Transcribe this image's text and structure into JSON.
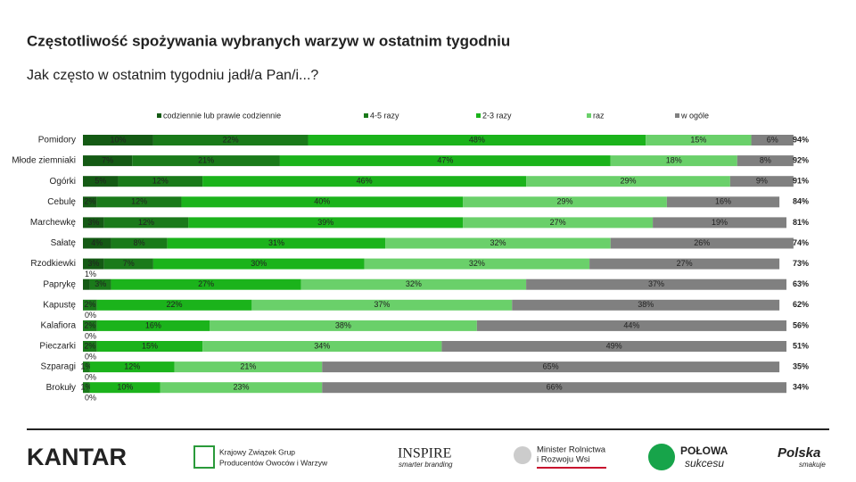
{
  "chart_data": {
    "type": "stacked-bar-horizontal",
    "title": "Częstotliwość spożywania wybranych warzyw w ostatnim tygodniu",
    "subtitle": "Jak często w ostatnim tygodniu jadł/a Pan/i...?",
    "categories": [
      "Pomidory",
      "Młode ziemniaki",
      "Ogórki",
      "Cebulę",
      "Marchewkę",
      "Sałatę",
      "Rzodkiewki",
      "Paprykę",
      "Kapustę",
      "Kalafiora",
      "Pieczarki",
      "Szparagi",
      "Brokuły"
    ],
    "xlim": [
      0,
      100
    ],
    "series": [
      {
        "name": "codziennie lub prawie codziennie",
        "color": "#145a14",
        "values": [
          10,
          7,
          5,
          2,
          3,
          4,
          3,
          1,
          0,
          0,
          0,
          0,
          0
        ],
        "value_labels": [
          "10%",
          "7%",
          "5%",
          "2%",
          "3%",
          "4%",
          "3%",
          "1%",
          "0%",
          "0%",
          "0%",
          "0%",
          "0%"
        ]
      },
      {
        "name": "4-5 razy",
        "color": "#1a7a1a",
        "values": [
          22,
          21,
          12,
          12,
          12,
          8,
          7,
          3,
          2,
          2,
          2,
          1,
          1
        ],
        "value_labels": [
          "22%",
          "21%",
          "12%",
          "12%",
          "12%",
          "8%",
          "7%",
          "3%",
          "2%",
          "2%",
          "2%",
          "1%",
          "1%"
        ]
      },
      {
        "name": "2-3 razy",
        "color": "#1bb31b",
        "values": [
          48,
          47,
          46,
          40,
          39,
          31,
          30,
          27,
          22,
          16,
          15,
          12,
          10
        ],
        "value_labels": [
          "48%",
          "47%",
          "46%",
          "40%",
          "39%",
          "31%",
          "30%",
          "27%",
          "22%",
          "16%",
          "15%",
          "12%",
          "10%"
        ]
      },
      {
        "name": "raz",
        "color": "#6ad06a",
        "values": [
          15,
          18,
          29,
          29,
          27,
          32,
          32,
          32,
          37,
          38,
          34,
          21,
          23
        ],
        "value_labels": [
          "15%",
          "18%",
          "29%",
          "29%",
          "27%",
          "32%",
          "32%",
          "32%",
          "37%",
          "38%",
          "34%",
          "21%",
          "23%"
        ]
      },
      {
        "name": "w ogóle",
        "color": "#808080",
        "values": [
          6,
          8,
          9,
          16,
          19,
          26,
          27,
          37,
          38,
          44,
          49,
          65,
          66
        ],
        "value_labels": [
          "6%",
          "8%",
          "9%",
          "16%",
          "19%",
          "26%",
          "27%",
          "37%",
          "38%",
          "44%",
          "49%",
          "65%",
          "66%"
        ]
      }
    ],
    "totals": {
      "values": [
        94,
        92,
        91,
        84,
        81,
        74,
        73,
        63,
        62,
        56,
        51,
        35,
        34
      ],
      "value_labels": [
        "94%",
        "92%",
        "91%",
        "84%",
        "81%",
        "74%",
        "73%",
        "63%",
        "62%",
        "56%",
        "51%",
        "35%",
        "34%"
      ],
      "color": "#1a6b1a"
    }
  },
  "footer": {
    "logos": [
      "KANTAR",
      "Krajowy Związek Grup",
      "Producentów Owoców i Warzyw",
      "INSPIRE",
      "smarter branding",
      "Minister Rolnictwa",
      "i Rozwoju Wsi",
      "POŁOWA",
      "sukcesu",
      "Polska",
      "smakuje"
    ]
  }
}
